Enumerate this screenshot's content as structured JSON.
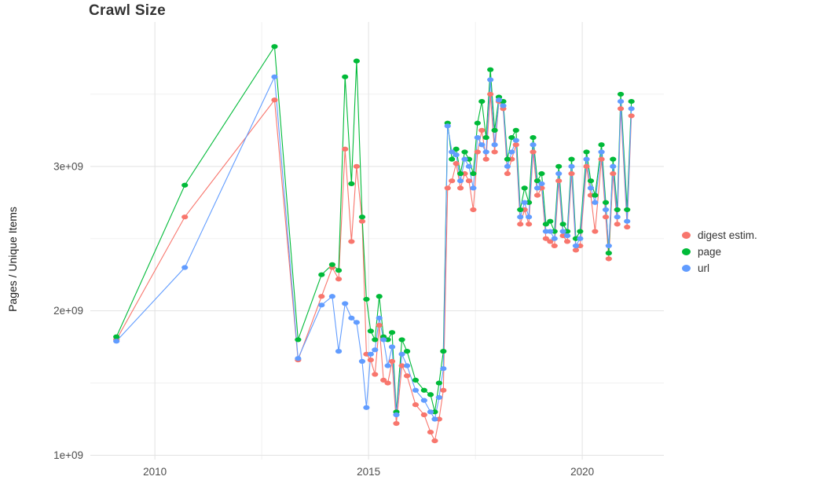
{
  "chart_data": {
    "type": "scatter",
    "title": "Crawl Size",
    "xlabel": "",
    "ylabel": "Pages / Unique Items",
    "legend_position": "right",
    "grid": true,
    "xlim": [
      2008.49,
      2021.91
    ],
    "ylim": [
      970000000,
      4000000000
    ],
    "x_ticks": [
      2010,
      2015,
      2020
    ],
    "x_tick_labels": [
      "2010",
      "2015",
      "2020"
    ],
    "x_minor_ticks": [
      2012.5,
      2017.5
    ],
    "y_ticks": [
      1000000000,
      2000000000,
      3000000000
    ],
    "y_tick_labels": [
      "1e+09",
      "2e+09",
      "3e+09"
    ],
    "y_minor_ticks": [
      1500000000,
      2500000000,
      3500000000
    ],
    "value_scale": 1000000000,
    "x": [
      2009.1,
      2010.7,
      2012.8,
      2013.35,
      2013.9,
      2014.15,
      2014.3,
      2014.45,
      2014.6,
      2014.72,
      2014.85,
      2014.95,
      2015.05,
      2015.15,
      2015.25,
      2015.35,
      2015.45,
      2015.55,
      2015.65,
      2015.78,
      2015.9,
      2016.1,
      2016.3,
      2016.45,
      2016.55,
      2016.65,
      2016.75,
      2016.85,
      2016.95,
      2017.05,
      2017.15,
      2017.25,
      2017.35,
      2017.45,
      2017.55,
      2017.65,
      2017.75,
      2017.85,
      2017.95,
      2018.05,
      2018.15,
      2018.25,
      2018.35,
      2018.45,
      2018.55,
      2018.65,
      2018.75,
      2018.85,
      2018.95,
      2019.05,
      2019.15,
      2019.25,
      2019.35,
      2019.45,
      2019.55,
      2019.65,
      2019.75,
      2019.85,
      2019.95,
      2020.1,
      2020.2,
      2020.3,
      2020.45,
      2020.55,
      2020.62,
      2020.72,
      2020.82,
      2020.9,
      2021.05,
      2021.15
    ],
    "series": [
      {
        "name": "digest estim.",
        "color": "#F8766D",
        "values": [
          1.8,
          2.65,
          3.46,
          1.66,
          2.1,
          2.3,
          2.22,
          3.12,
          2.48,
          3.0,
          2.62,
          1.7,
          1.66,
          1.56,
          1.9,
          1.52,
          1.5,
          1.65,
          1.22,
          1.62,
          1.55,
          1.35,
          1.28,
          1.16,
          1.1,
          1.25,
          1.45,
          2.85,
          2.9,
          3.02,
          2.85,
          2.95,
          2.9,
          2.7,
          3.1,
          3.25,
          3.05,
          3.5,
          3.1,
          3.45,
          3.4,
          2.95,
          3.05,
          3.15,
          2.6,
          2.7,
          2.6,
          3.1,
          2.8,
          2.85,
          2.5,
          2.48,
          2.45,
          2.9,
          2.52,
          2.48,
          2.95,
          2.42,
          2.45,
          3.0,
          2.8,
          2.55,
          3.05,
          2.65,
          2.36,
          2.95,
          2.6,
          3.4,
          2.58,
          3.35
        ]
      },
      {
        "name": "page",
        "color": "#00BA38",
        "values": [
          1.82,
          2.87,
          3.83,
          1.8,
          2.25,
          2.32,
          2.28,
          3.62,
          2.88,
          3.73,
          2.65,
          2.08,
          1.86,
          1.8,
          2.1,
          1.82,
          1.8,
          1.85,
          1.3,
          1.8,
          1.72,
          1.52,
          1.45,
          1.42,
          1.3,
          1.5,
          1.72,
          3.3,
          3.05,
          3.12,
          2.95,
          3.1,
          3.05,
          2.95,
          3.3,
          3.45,
          3.2,
          3.67,
          3.25,
          3.48,
          3.45,
          3.05,
          3.2,
          3.25,
          2.7,
          2.85,
          2.75,
          3.2,
          2.9,
          2.95,
          2.6,
          2.62,
          2.55,
          3.0,
          2.6,
          2.55,
          3.05,
          2.5,
          2.55,
          3.1,
          2.9,
          2.8,
          3.15,
          2.75,
          2.4,
          3.05,
          2.7,
          3.5,
          2.7,
          3.45
        ]
      },
      {
        "name": "url",
        "color": "#619CFF",
        "values": [
          1.79,
          2.3,
          3.62,
          1.67,
          2.04,
          2.1,
          1.72,
          2.05,
          1.95,
          1.92,
          1.65,
          1.33,
          1.7,
          1.73,
          1.95,
          1.8,
          1.62,
          1.75,
          1.28,
          1.7,
          1.62,
          1.45,
          1.38,
          1.3,
          1.25,
          1.4,
          1.6,
          3.28,
          3.1,
          3.08,
          2.9,
          3.05,
          3.0,
          2.85,
          3.2,
          3.15,
          3.1,
          3.6,
          3.15,
          3.46,
          3.42,
          3.0,
          3.1,
          3.18,
          2.65,
          2.75,
          2.65,
          3.15,
          2.85,
          2.88,
          2.55,
          2.55,
          2.5,
          2.95,
          2.55,
          2.52,
          3.0,
          2.45,
          2.5,
          3.05,
          2.85,
          2.75,
          3.1,
          2.7,
          2.45,
          3.0,
          2.65,
          3.45,
          2.62,
          3.4
        ]
      }
    ]
  },
  "colors": {
    "major_grid": "#e2e2e2",
    "minor_grid": "#f1f1f1",
    "tick_text": "#4d4d4d"
  }
}
